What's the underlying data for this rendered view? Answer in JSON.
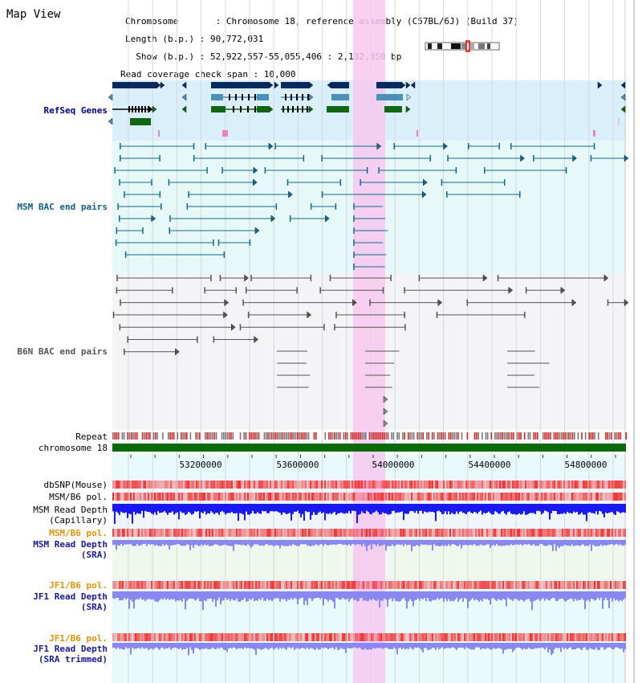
{
  "view_title": "Map View",
  "info": {
    "chromosome": "Chromosome       : Chromosome 18, reference assembly (C57BL/6J) (Build 37)",
    "length": "Length (b.p.) : 90,772,031",
    "show": "  Show (b.p.) : 52,922,557-55,055,406 : 2,132,850 bp",
    "coverage": "Read coverage check span : 10,000"
  },
  "labels": {
    "refseq": "RefSeq Genes",
    "msm_bac": "MSM BAC end pairs",
    "b6n_bac": "B6N BAC end pairs",
    "repeat": "Repeat",
    "chromosome": "chromosome 18",
    "dbsnp": "dbSNP(Mouse)",
    "msm_b6_pol_1": "MSM/B6 pol.",
    "msm_depth_cap_1": "MSM Read Depth",
    "msm_depth_cap_2": "(Capillary)",
    "msm_b6_pol_2": "MSM/B6 pol.",
    "msm_depth_sra_1": "MSM Read Depth",
    "msm_depth_sra_2": "(SRA)",
    "jf1_b6_pol_1": "JF1/B6 pol.",
    "jf1_depth_sra_1": "JF1 Read Depth",
    "jf1_depth_sra_2": "(SRA)",
    "jf1_b6_pol_2": "JF1/B6 pol.",
    "jf1_depth_trim_1": "JF1 Read Depth",
    "jf1_depth_trim_2": "(SRA trimmed)"
  },
  "axis_ticks": [
    "53200000",
    "53600000",
    "54000000",
    "54400000",
    "54800000"
  ],
  "colors": {
    "highlight": "#f6c8f0",
    "refseq_bg": "#d9effa",
    "msm_bg": "#e6f8f8",
    "b6n_bg": "#f4f4f7",
    "gene_navy": "#0a2a60",
    "gene_steel": "#4a90b8",
    "gene_green": "#116611",
    "msm_pair": "#106a8a",
    "b6n_pair": "#555555",
    "chromosome_bar": "#0a6a0a",
    "depth_dark": "#1a1af0",
    "depth_light": "#8888f0",
    "pol_red": "#ee5555"
  }
}
